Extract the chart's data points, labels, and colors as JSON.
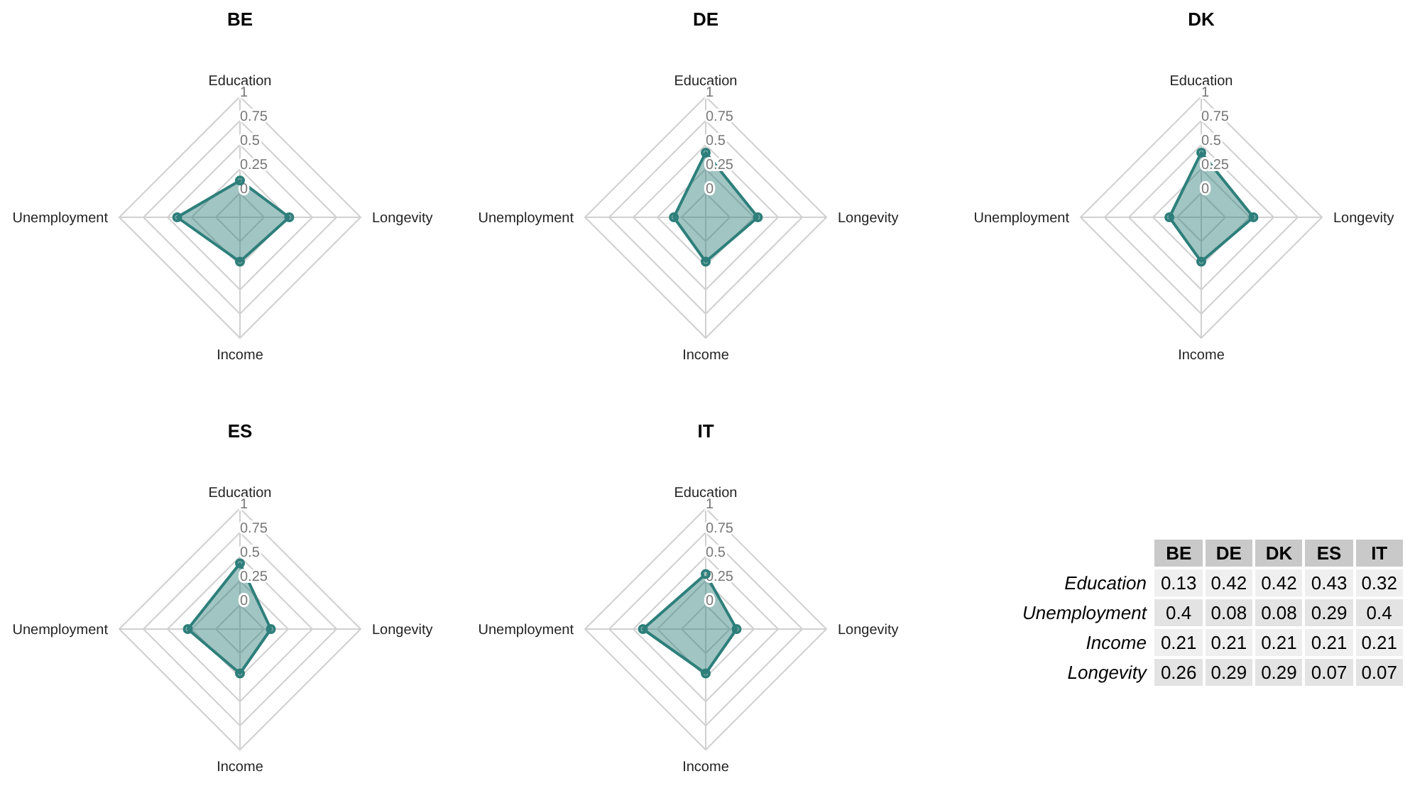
{
  "chart_data": [
    {
      "type": "radar",
      "title": "BE",
      "categories": [
        "Education",
        "Longevity",
        "Income",
        "Unemployment"
      ],
      "series": [
        {
          "color": "#2e7f7b",
          "values": [
            0.13,
            0.26,
            0.21,
            0.4
          ]
        }
      ],
      "ylim": [
        -0.25,
        1
      ],
      "yticks": [
        0,
        0.25,
        0.5,
        0.75,
        1
      ],
      "grid": true,
      "marker": "circle"
    },
    {
      "type": "radar",
      "title": "DE",
      "categories": [
        "Education",
        "Longevity",
        "Income",
        "Unemployment"
      ],
      "series": [
        {
          "color": "#2e7f7b",
          "values": [
            0.42,
            0.29,
            0.21,
            0.08
          ]
        }
      ],
      "ylim": [
        -0.25,
        1
      ],
      "yticks": [
        0,
        0.25,
        0.5,
        0.75,
        1
      ],
      "grid": true,
      "marker": "circle"
    },
    {
      "type": "radar",
      "title": "DK",
      "categories": [
        "Education",
        "Longevity",
        "Income",
        "Unemployment"
      ],
      "series": [
        {
          "color": "#2e7f7b",
          "values": [
            0.42,
            0.29,
            0.21,
            0.08
          ]
        }
      ],
      "ylim": [
        -0.25,
        1
      ],
      "yticks": [
        0,
        0.25,
        0.5,
        0.75,
        1
      ],
      "grid": true,
      "marker": "circle"
    },
    {
      "type": "radar",
      "title": "ES",
      "categories": [
        "Education",
        "Longevity",
        "Income",
        "Unemployment"
      ],
      "series": [
        {
          "color": "#2e7f7b",
          "values": [
            0.43,
            0.07,
            0.21,
            0.29
          ]
        }
      ],
      "ylim": [
        -0.25,
        1
      ],
      "yticks": [
        0,
        0.25,
        0.5,
        0.75,
        1
      ],
      "grid": true,
      "marker": "circle"
    },
    {
      "type": "radar",
      "title": "IT",
      "categories": [
        "Education",
        "Longevity",
        "Income",
        "Unemployment"
      ],
      "series": [
        {
          "color": "#2e7f7b",
          "values": [
            0.32,
            0.07,
            0.21,
            0.4
          ]
        }
      ],
      "ylim": [
        -0.25,
        1
      ],
      "yticks": [
        0,
        0.25,
        0.5,
        0.75,
        1
      ],
      "grid": true,
      "marker": "circle"
    },
    {
      "type": "other",
      "data_labels": true,
      "categories": [
        "Education",
        "Unemployment",
        "Income",
        "Longevity"
      ],
      "series": [
        {
          "name": "BE",
          "colors": [
            "#efefef",
            "#e3e3e3",
            "#efefef",
            "#e3e3e3"
          ],
          "values": [
            0.13,
            0.4,
            0.21,
            0.26
          ]
        },
        {
          "name": "DE",
          "colors": [
            "#efefef",
            "#e3e3e3",
            "#efefef",
            "#e3e3e3"
          ],
          "values": [
            0.42,
            0.08,
            0.21,
            0.29
          ]
        },
        {
          "name": "DK",
          "colors": [
            "#efefef",
            "#e3e3e3",
            "#efefef",
            "#e3e3e3"
          ],
          "values": [
            0.42,
            0.08,
            0.21,
            0.29
          ]
        },
        {
          "name": "ES",
          "colors": [
            "#efefef",
            "#e3e3e3",
            "#efefef",
            "#e3e3e3"
          ],
          "values": [
            0.43,
            0.29,
            0.21,
            0.07
          ]
        },
        {
          "name": "IT",
          "colors": [
            "#efefef",
            "#e3e3e3",
            "#efefef",
            "#e3e3e3"
          ],
          "values": [
            0.32,
            0.4,
            0.21,
            0.07
          ]
        }
      ]
    }
  ]
}
